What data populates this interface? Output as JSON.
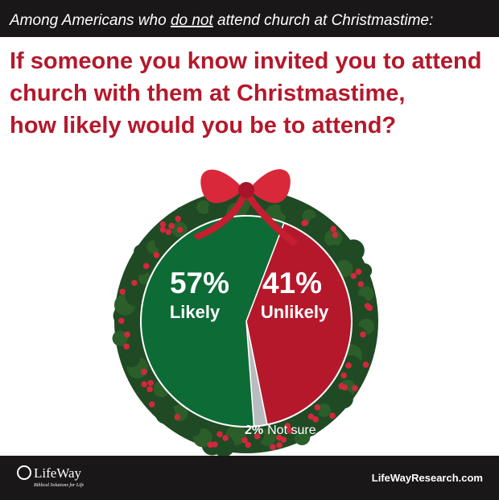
{
  "chart_data": {
    "type": "pie",
    "subtitle_parts": [
      "Among Americans who ",
      "do not",
      " attend church at Christmastime:"
    ],
    "title_lines": [
      "If someone you know invited you to attend",
      "church with them at Christmastime,",
      "how likely would you be to attend?"
    ],
    "categories": [
      "Likely",
      "Unlikely",
      "Not sure"
    ],
    "values": [
      57,
      41,
      2
    ],
    "value_labels": [
      "57%",
      "41%",
      "2%"
    ],
    "colors": [
      "#0d6b35",
      "#b5182b",
      "#b9bcbf"
    ]
  },
  "footer": {
    "logo": "LifeWay",
    "tagline": "Biblical Solutions for Life",
    "website": "LifeWayResearch.com"
  }
}
